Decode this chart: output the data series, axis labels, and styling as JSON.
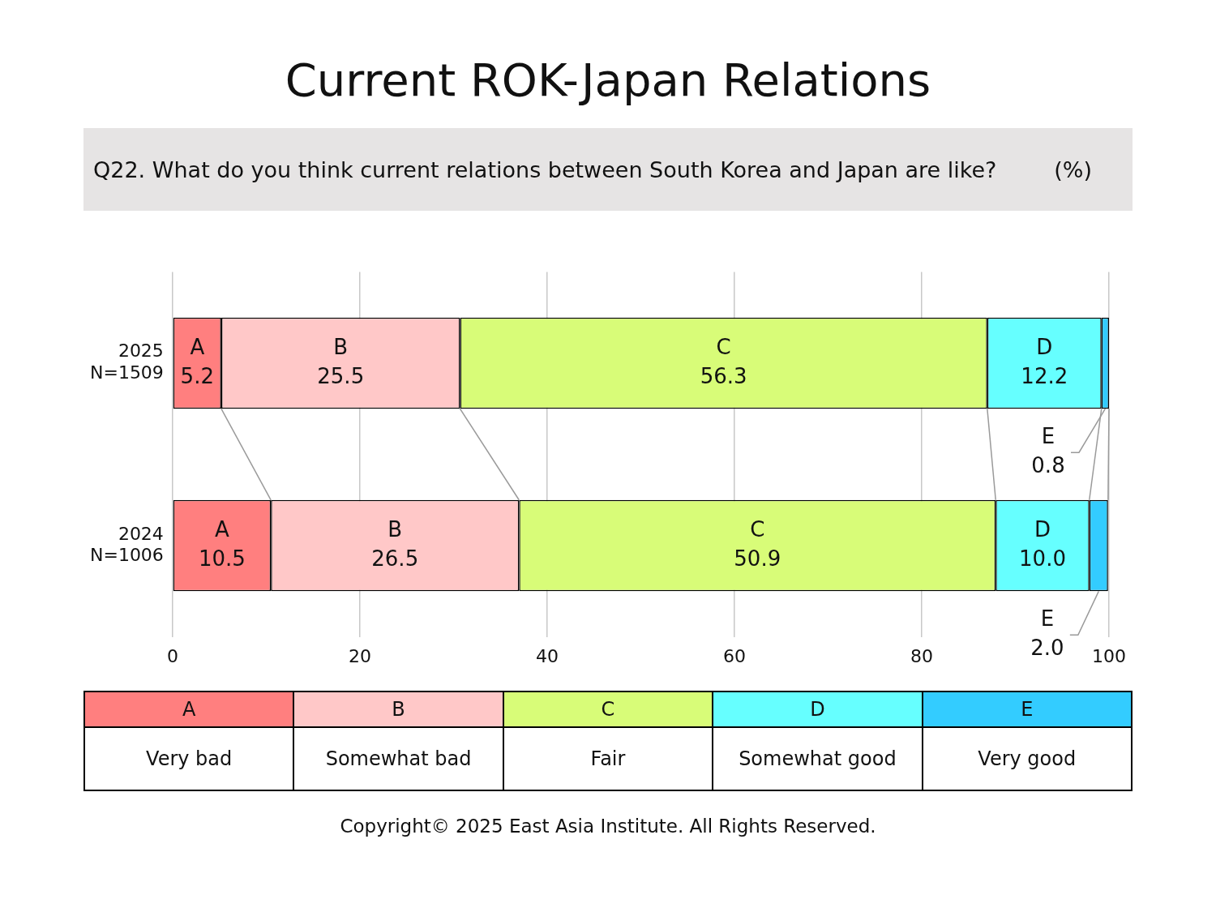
{
  "chart_data": {
    "type": "bar",
    "orientation": "horizontal",
    "stacked": true,
    "title": "Current ROK-Japan Relations",
    "subtitle": "Q22. What do you think current relations between South Korea and Japan are like?",
    "categories": [
      "2025\nN=1509",
      "2024\nN=1006"
    ],
    "series": [
      {
        "name": "A",
        "color": "#ff7f7f",
        "values": [
          5.2,
          10.5
        ],
        "value_labels": [
          "5.2",
          "10.5"
        ]
      },
      {
        "name": "B",
        "color": "#ffc8c8",
        "values": [
          25.5,
          26.5
        ],
        "value_labels": [
          "25.5",
          "26.5"
        ]
      },
      {
        "name": "C",
        "color": "#d8fc78",
        "values": [
          56.3,
          50.9
        ],
        "value_labels": [
          "56.3",
          "50.9"
        ]
      },
      {
        "name": "D",
        "color": "#66ffff",
        "values": [
          12.2,
          10.0
        ],
        "value_labels": [
          "12.2",
          "10.0"
        ]
      },
      {
        "name": "E",
        "color": "#33ccff",
        "values": [
          0.8,
          2.0
        ],
        "value_labels": [
          "0.8",
          "2.0"
        ]
      }
    ],
    "xlim": [
      0,
      100
    ],
    "xticks": [
      0,
      20,
      40,
      60,
      80,
      100
    ],
    "grid": "x",
    "legend": "bottom",
    "annotations": [
      "(%)",
      "Very bad",
      "Somewhat bad",
      "Fair",
      "Somewhat good",
      "Very good",
      "Copyright© 2025 East Asia Institute. All Rights Reserved."
    ]
  }
}
